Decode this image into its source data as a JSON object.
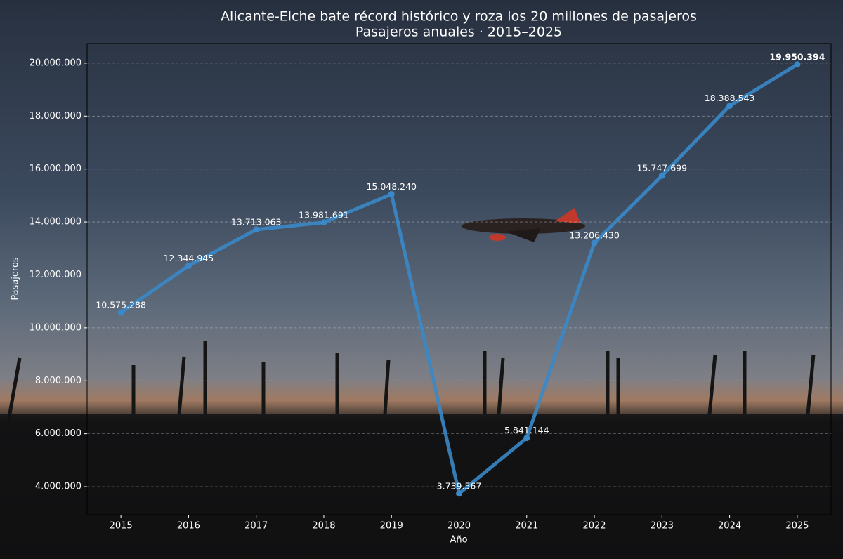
{
  "chart_data": {
    "type": "line",
    "title": "Alicante-Elche bate récord histórico y roza los 20 millones de pasajeros",
    "subtitle": "Pasajeros anuales · 2015–2025",
    "x_label": "Año",
    "y_label": "Pasajeros",
    "x": [
      2015,
      2016,
      2017,
      2018,
      2019,
      2020,
      2021,
      2022,
      2023,
      2024,
      2025
    ],
    "series": [
      {
        "name": "Pasajeros",
        "color": "#3a88c8",
        "values": [
          10575288,
          12344945,
          13713063,
          13981691,
          15048240,
          3739567,
          5841144,
          13206430,
          15747699,
          18388543,
          19950394
        ],
        "value_labels": [
          "10.575.288",
          "12.344.945",
          "13.713.063",
          "13.981.691",
          "15.048.240",
          "3.739.567",
          "5.841.144",
          "13.206.430",
          "15.747.699",
          "18.388.543",
          "19.950.394"
        ]
      }
    ],
    "xlim": [
      2014.5,
      2025.5
    ],
    "xticks": [
      2015,
      2016,
      2017,
      2018,
      2019,
      2020,
      2021,
      2022,
      2023,
      2024,
      2025
    ],
    "ylim": [
      2940000,
      20740000
    ],
    "yticks": [
      {
        "value": 4000000,
        "label": "4.000.000"
      },
      {
        "value": 6000000,
        "label": "6.000.000"
      },
      {
        "value": 8000000,
        "label": "8.000.000"
      },
      {
        "value": 10000000,
        "label": "10.000.000"
      },
      {
        "value": 12000000,
        "label": "12.000.000"
      },
      {
        "value": 14000000,
        "label": "14.000.000"
      },
      {
        "value": 16000000,
        "label": "16.000.000"
      },
      {
        "value": 18000000,
        "label": "18.000.000"
      },
      {
        "value": 20000000,
        "label": "20.000.000"
      }
    ],
    "grid": true
  }
}
